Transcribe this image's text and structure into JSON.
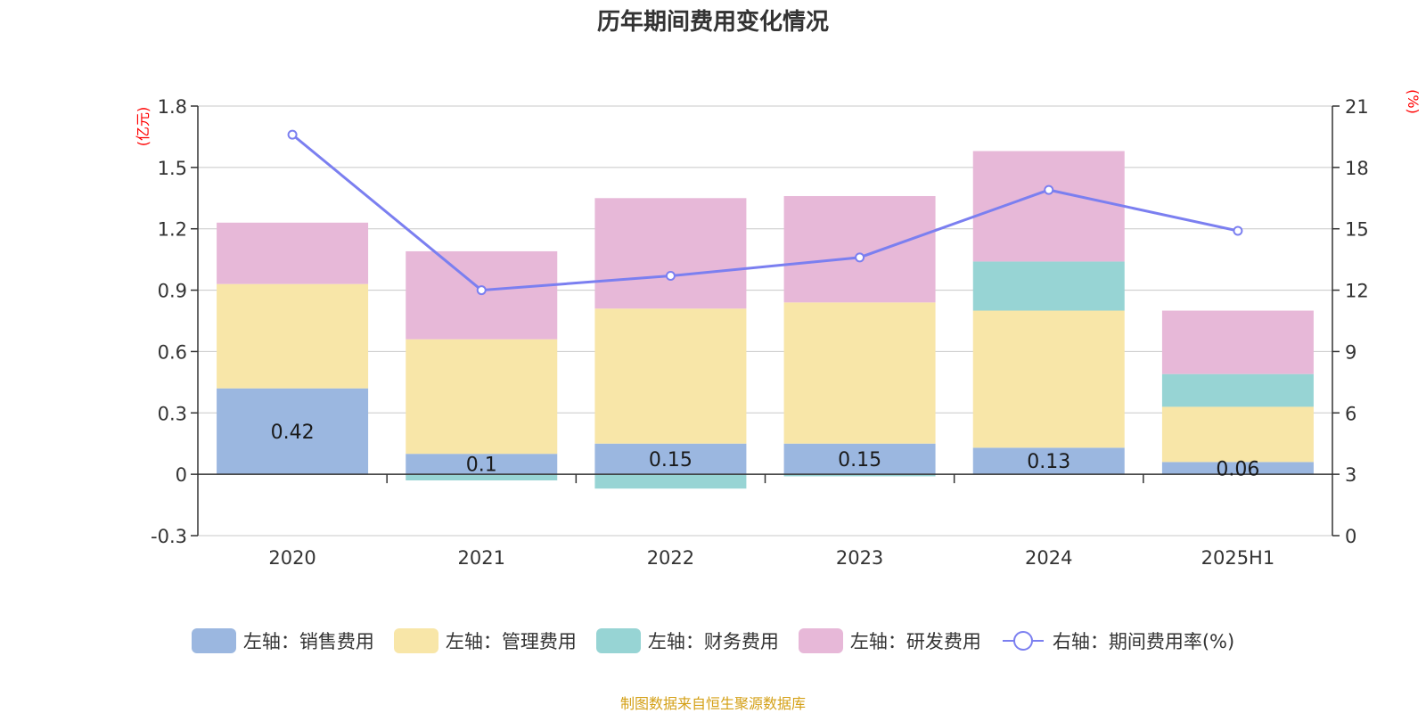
{
  "title": "历年期间费用变化情况",
  "footer": "制图数据来自恒生聚源数据库",
  "left_unit": "(亿元)",
  "right_unit": "(%)",
  "chart_data": {
    "type": "bar",
    "stacked": true,
    "title": "历年期间费用变化情况",
    "categories": [
      "2020",
      "2021",
      "2022",
      "2023",
      "2024",
      "2025H1"
    ],
    "left_axis": {
      "ylim": [
        -0.3,
        1.8
      ],
      "ticks": [
        "-0.3",
        "0",
        "0.3",
        "0.6",
        "0.9",
        "1.2",
        "1.5",
        "1.8"
      ]
    },
    "right_axis": {
      "ylim": [
        0,
        21
      ],
      "ticks": [
        "0",
        "3",
        "6",
        "9",
        "12",
        "15",
        "18",
        "21"
      ]
    },
    "grid": true,
    "legend_position": "bottom",
    "series": [
      {
        "name": "左轴：销售费用",
        "type": "bar",
        "axis": "left",
        "color": "#9bb7e0",
        "values": [
          0.42,
          0.1,
          0.15,
          0.15,
          0.13,
          0.06
        ],
        "labels": [
          "0.42",
          "0.1",
          "0.15",
          "0.15",
          "0.13",
          "0.06"
        ]
      },
      {
        "name": "左轴：管理费用",
        "type": "bar",
        "axis": "left",
        "color": "#f8e6a8",
        "values": [
          0.51,
          0.56,
          0.66,
          0.69,
          0.67,
          0.27
        ]
      },
      {
        "name": "左轴：财务费用",
        "type": "bar",
        "axis": "left",
        "color": "#97d4d4",
        "values": [
          0.0,
          -0.03,
          -0.07,
          -0.01,
          0.24,
          0.16
        ]
      },
      {
        "name": "左轴：研发费用",
        "type": "bar",
        "axis": "left",
        "color": "#e7b8d8",
        "values": [
          0.3,
          0.43,
          0.54,
          0.52,
          0.54,
          0.31
        ]
      },
      {
        "name": "右轴：期间费用率(%)",
        "type": "line",
        "axis": "right",
        "color": "#7b7ff0",
        "values": [
          19.6,
          12.0,
          12.7,
          13.6,
          16.9,
          14.9
        ]
      }
    ]
  }
}
